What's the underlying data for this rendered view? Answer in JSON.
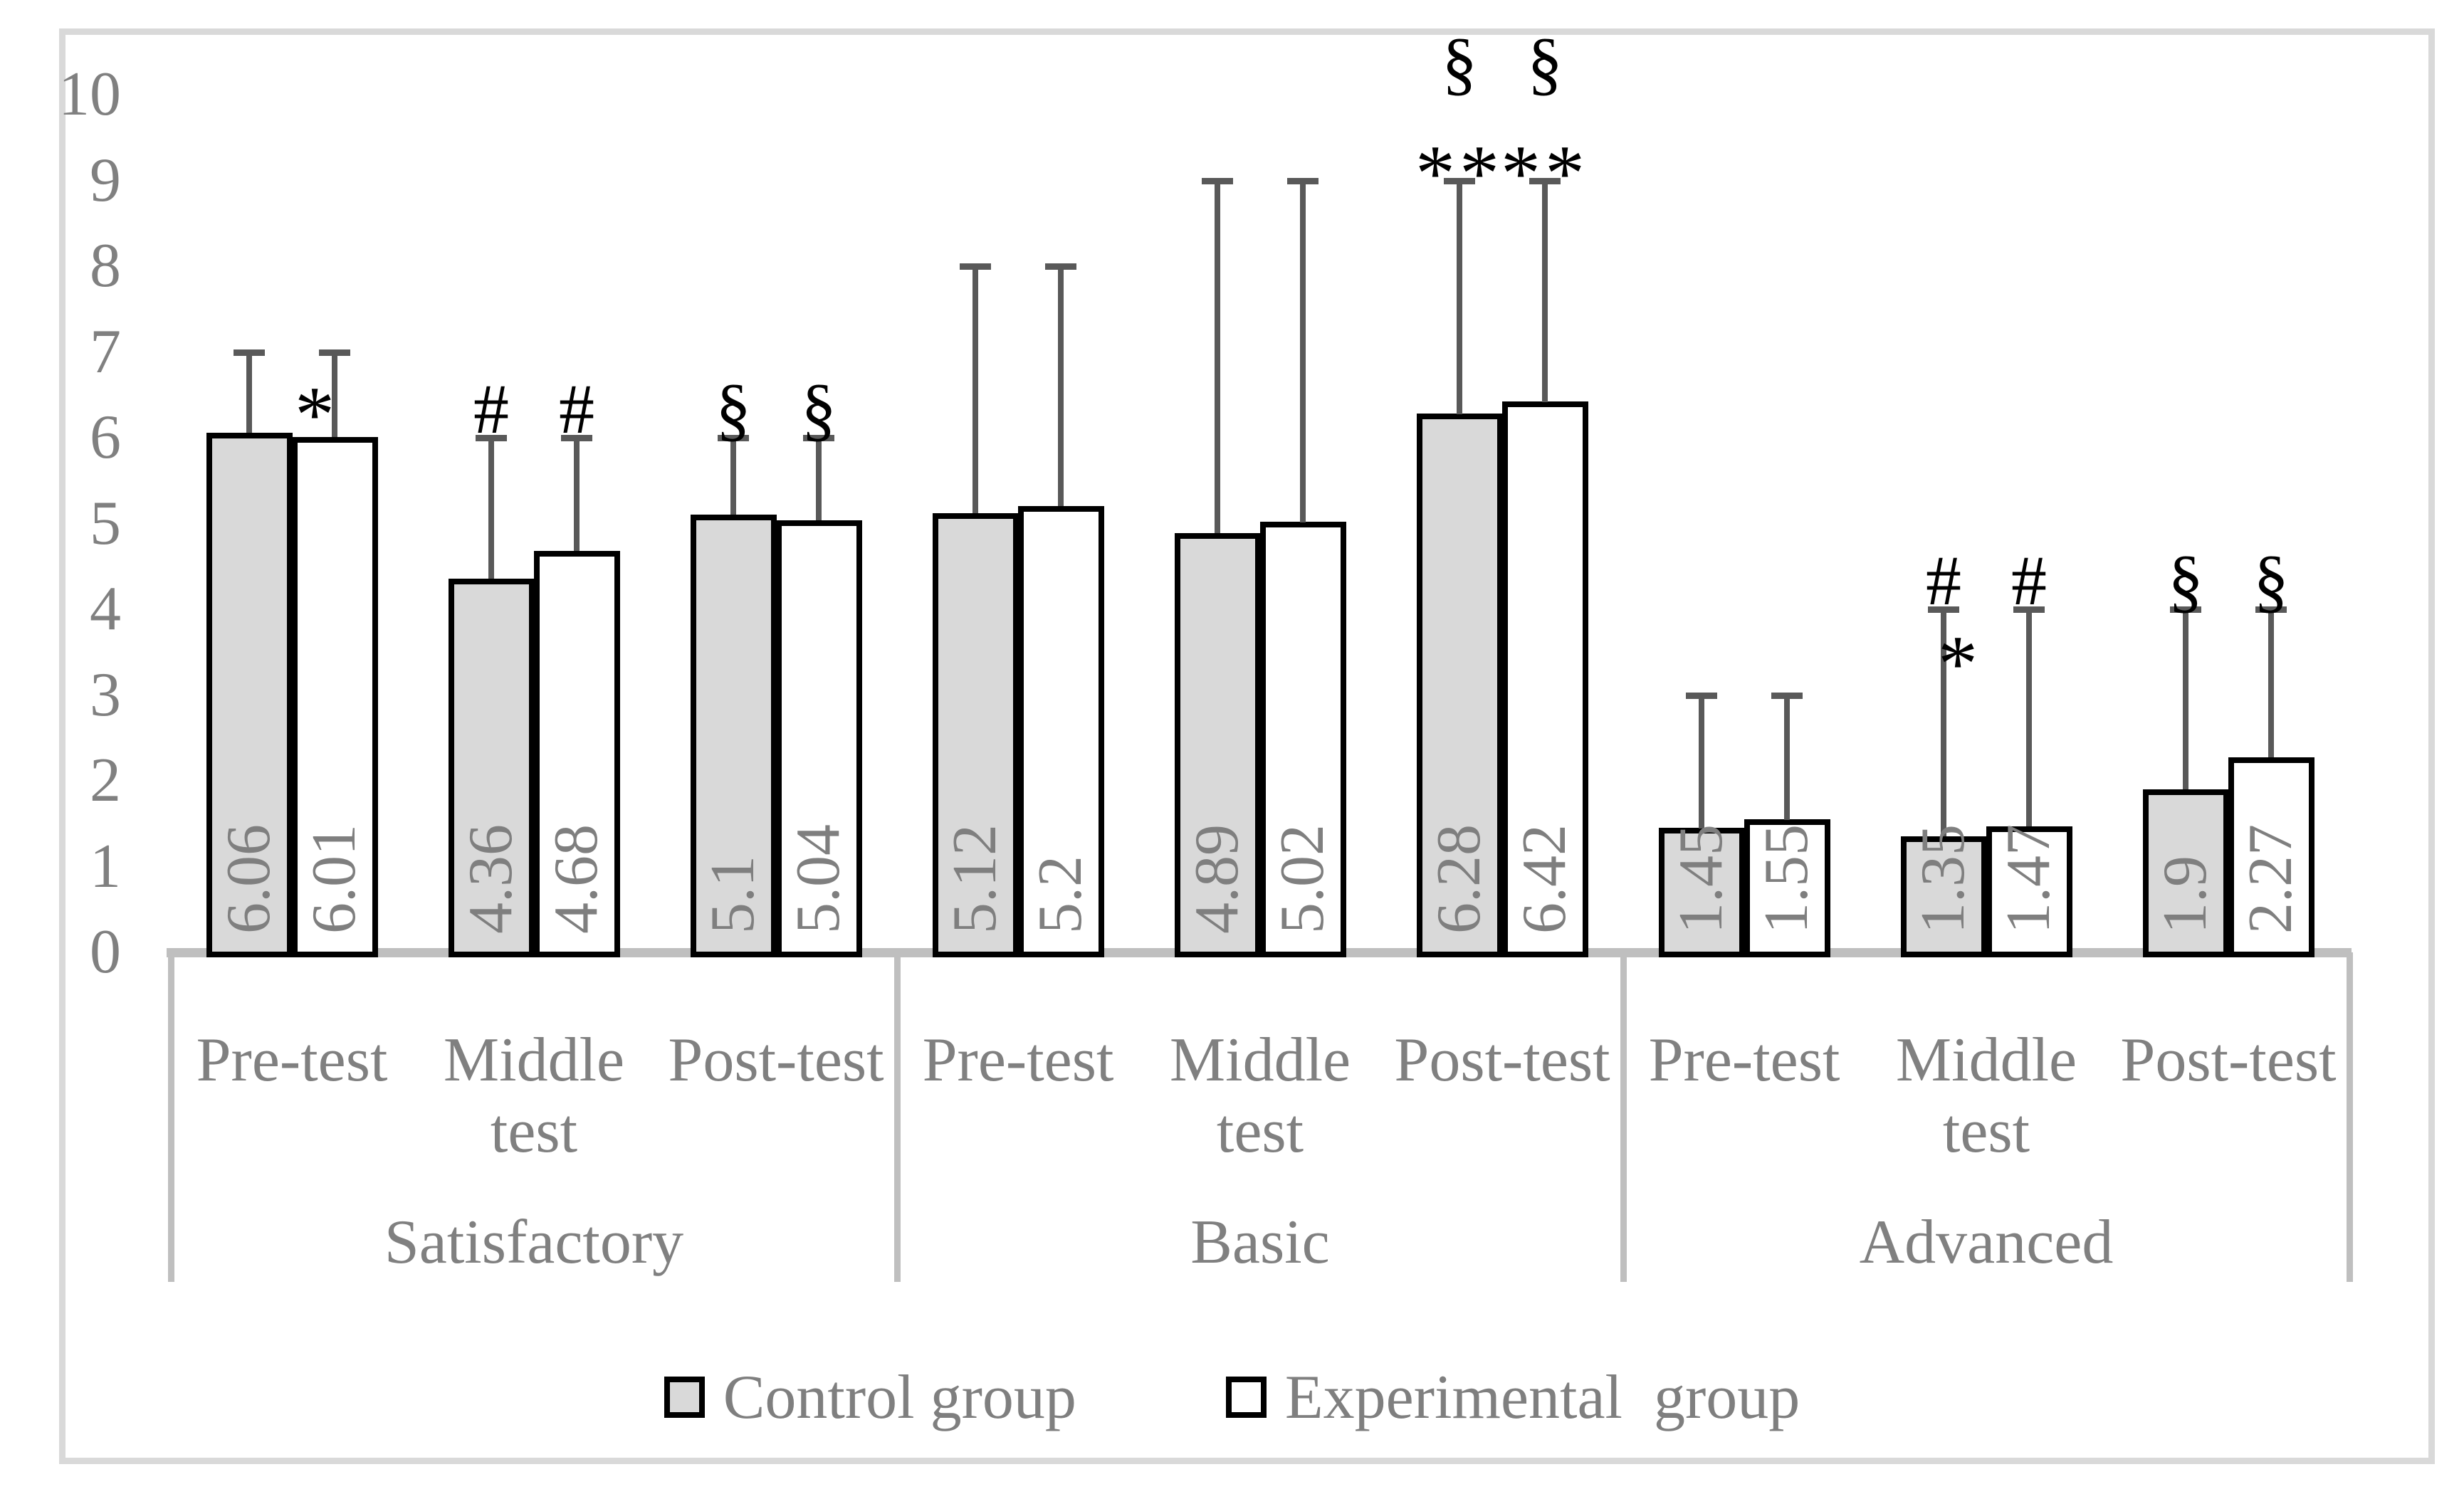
{
  "figure": {
    "kind": "grouped-bar-chart-with-error-bars"
  },
  "colors": {
    "control_fill": "#d9d9d9",
    "experimental_fill": "#ffffff",
    "bar_border": "#000000",
    "error_bar": "#595959",
    "axis_text": "#808080",
    "value_text": "#7f7f7f",
    "axis_line": "#bfbfbf",
    "figure_border": "#d9d9d9",
    "symbol_color": "#000000"
  },
  "legend": {
    "items": [
      {
        "label": "Control group",
        "swatch": "control"
      },
      {
        "label": "Experimental  group",
        "swatch": "experimental"
      }
    ]
  },
  "chart_data": {
    "type": "bar",
    "title": "",
    "xlabel": "",
    "ylabel": "",
    "ylim": [
      0,
      10
    ],
    "y_ticks": [
      0,
      1,
      2,
      3,
      4,
      5,
      6,
      7,
      8,
      9,
      10
    ],
    "grid": false,
    "legend_position": "bottom",
    "groups": [
      {
        "label": "Satisfactory",
        "tests": [
          "Pre-test",
          "Middle test",
          "Post-test"
        ]
      },
      {
        "label": "Basic",
        "tests": [
          "Pre-test",
          "Middle test",
          "Post-test"
        ]
      },
      {
        "label": "Advanced",
        "tests": [
          "Pre-test",
          "Middle test",
          "Post-test"
        ]
      }
    ],
    "categories": [
      "Pre-test",
      "Middle test",
      "Post-test",
      "Pre-test",
      "Middle test",
      "Post-test",
      "Pre-test",
      "Middle test",
      "Post-test"
    ],
    "series": [
      {
        "name": "Control group",
        "fill": "control",
        "values": [
          6.06,
          4.36,
          5.1,
          5.12,
          4.89,
          6.28,
          1.45,
          1.35,
          1.9
        ],
        "error_top": [
          7,
          6,
          6,
          8,
          9,
          9,
          3,
          4,
          4
        ],
        "marks": [
          [],
          [
            "#"
          ],
          [
            "§"
          ],
          [],
          [],
          [
            "**",
            "§"
          ],
          [],
          [
            "#"
          ],
          [
            "§"
          ]
        ]
      },
      {
        "name": "Experimental group",
        "fill": "experimental",
        "values": [
          6.01,
          4.68,
          5.04,
          5.2,
          5.02,
          6.42,
          1.55,
          1.47,
          2.27
        ],
        "error_top": [
          7,
          6,
          6,
          8,
          9,
          9,
          3,
          4,
          4
        ],
        "marks": [
          [],
          [
            "#"
          ],
          [
            "§"
          ],
          [],
          [],
          [
            "**",
            "§"
          ],
          [],
          [
            "#"
          ],
          [
            "§"
          ]
        ]
      }
    ],
    "annotations": [
      {
        "symbol": "*",
        "pair_index": 0,
        "series": "Experimental group",
        "value": 6.42,
        "dx": -28
      },
      {
        "symbol": "*",
        "pair_index": 7,
        "series": "Experimental group",
        "value": 3.52,
        "dx": -100
      }
    ],
    "value_labels_rotated_90": true
  }
}
